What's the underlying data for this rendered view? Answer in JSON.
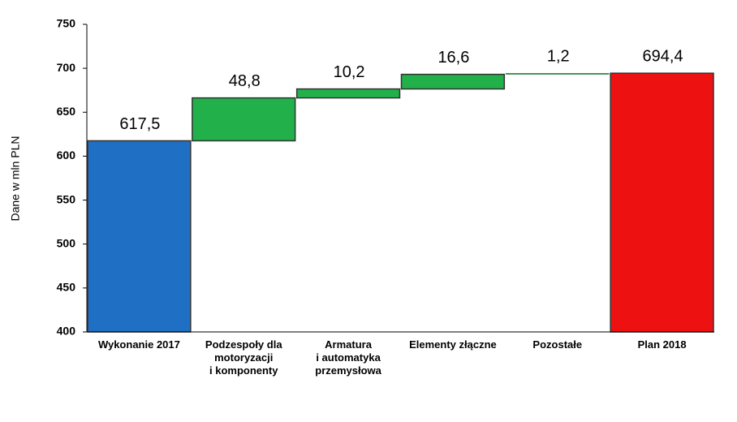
{
  "chart_data": {
    "type": "waterfall",
    "y_label": "Dane w mln PLN",
    "categories": [
      "Wykonanie 2017",
      "Podzespoły dla\nmotoryzacji\ni komponenty",
      "Armatura\ni automatyka\nprzemysłowa",
      "Elementy złączne",
      "Pozostałe",
      "Plan 2018"
    ],
    "values": [
      617.5,
      48.8,
      10.2,
      16.6,
      1.2,
      694.4
    ],
    "value_labels": [
      "617,5",
      "48,8",
      "10,2",
      "16,6",
      "1,2",
      "694,4"
    ],
    "is_total": [
      true,
      false,
      false,
      false,
      false,
      true
    ],
    "colors": [
      "#1f6fc5",
      "#22b04b",
      "#22b04b",
      "#22b04b",
      "#22b04b",
      "#ee1111"
    ],
    "ylim": [
      400,
      750
    ],
    "yticks": [
      400,
      450,
      500,
      550,
      600,
      650,
      700,
      750
    ]
  }
}
